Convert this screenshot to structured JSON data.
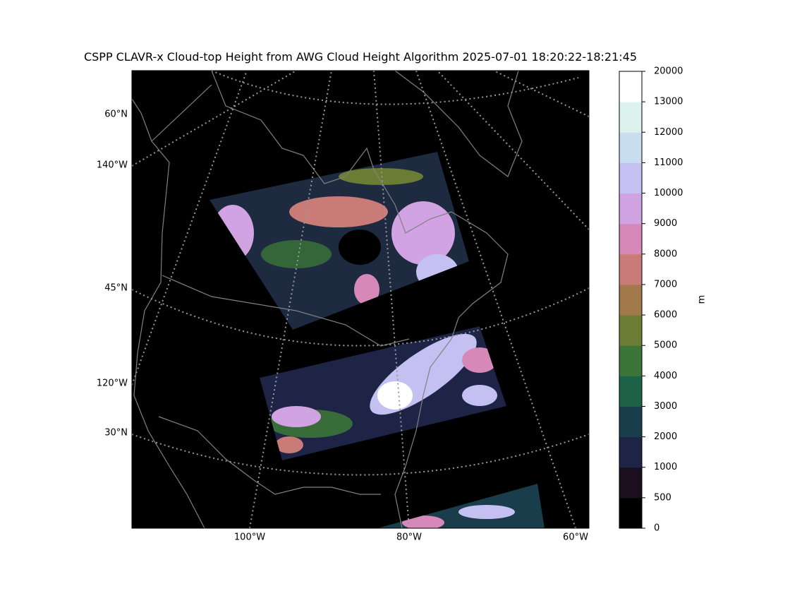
{
  "title": "CSPP CLAVR-x Cloud-top Height from AWG Cloud Height Algorithm 2025-07-01 18:20:22-18:21:45",
  "map": {
    "left_labels": [
      "60°N",
      "140°W",
      "45°N",
      "120°W",
      "30°N"
    ],
    "bottom_labels": [
      "100°W",
      "80°W",
      "60°W"
    ]
  },
  "colorbar": {
    "label": "m",
    "ticks": [
      0,
      500,
      1000,
      2000,
      3000,
      4000,
      5000,
      6000,
      7000,
      8000,
      9000,
      10000,
      11000,
      12000,
      13000,
      20000
    ],
    "colors": [
      "#000000",
      "#1b0f1f",
      "#1e2446",
      "#1a3d4c",
      "#1e6249",
      "#3b7537",
      "#6b7d35",
      "#a2794a",
      "#c87b77",
      "#d688b8",
      "#d1a3e2",
      "#c4c0f2",
      "#c8def0",
      "#dcf2ec",
      "#ffffff"
    ]
  }
}
